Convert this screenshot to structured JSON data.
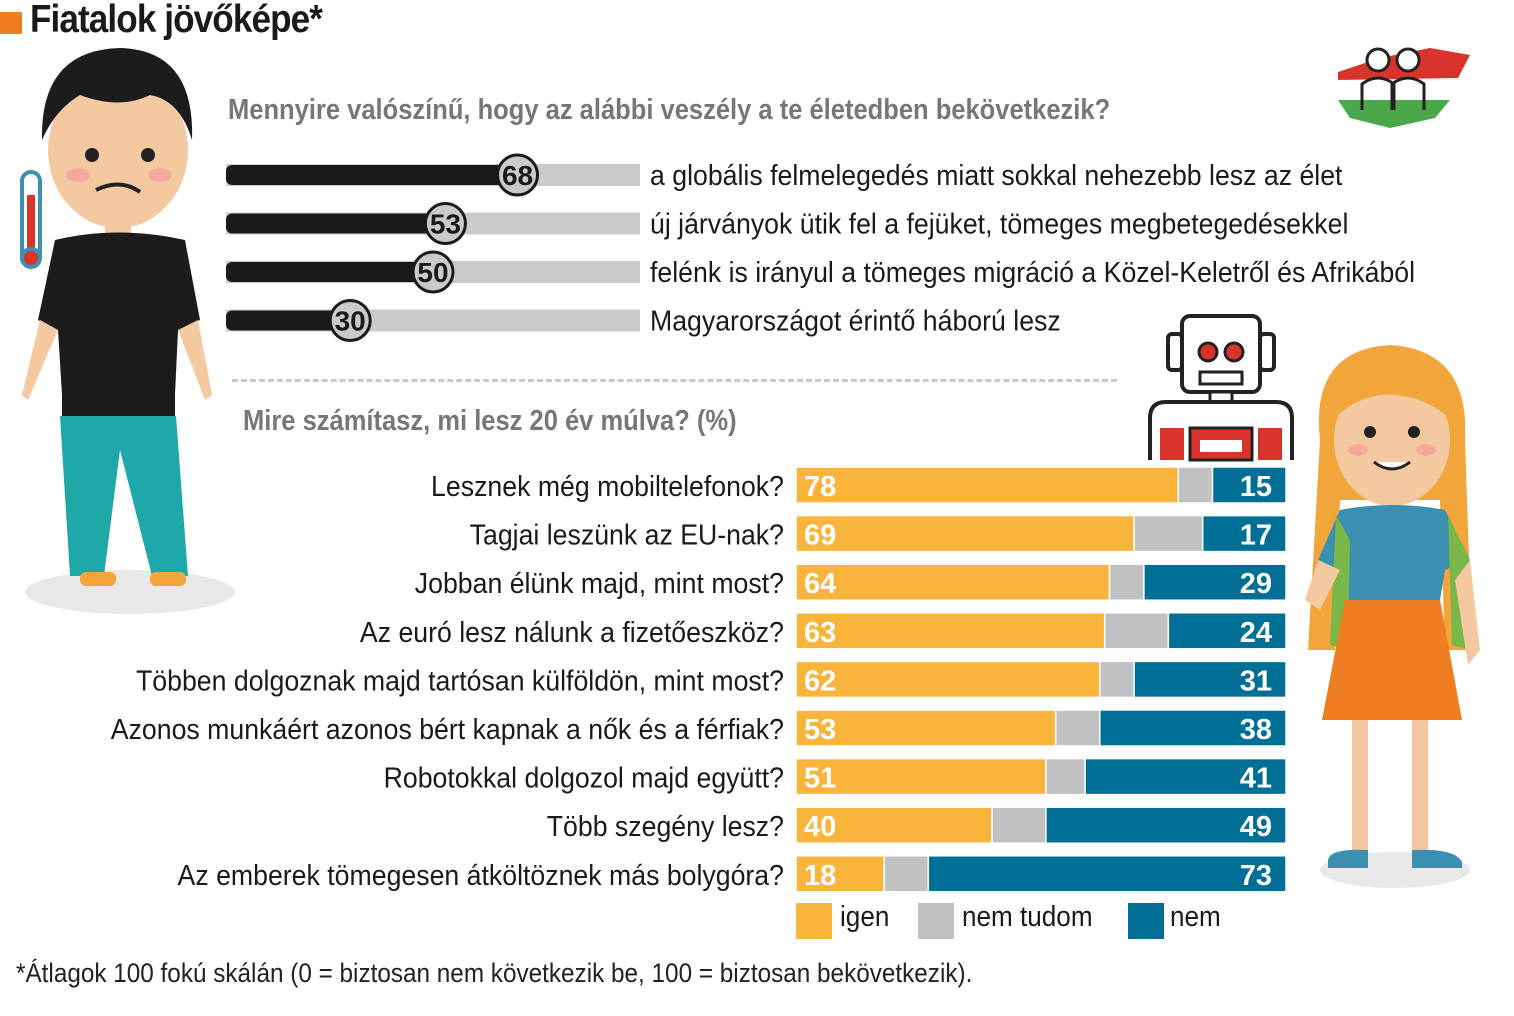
{
  "title": "Fiatalok jövőképe*",
  "colors": {
    "accent": "#ef7d22",
    "yes": "#f9b43b",
    "dontknow": "#c0c1c3",
    "no": "#006f96",
    "scale_fill": "#1a1a1a",
    "scale_track": "#c9cacc"
  },
  "chart_data": [
    {
      "type": "bar",
      "title": "Mennyire valószínű, hogy az alábbi veszély a te életedben bekövetkezik?",
      "scale": [
        0,
        100
      ],
      "categories": [
        "a globális felmelegedés miatt sokkal nehezebb lesz az élet",
        "új járványok ütik fel a fejüket, tömeges megbetegedésekkel",
        "felénk is irányul a tömeges migráció a Közel-Keletről és Afrikából",
        "Magyarországot érintő háború lesz"
      ],
      "values": [
        68,
        53,
        50,
        30
      ]
    },
    {
      "type": "bar",
      "stacked": true,
      "title": "Mire számítasz, mi lesz 20 év múlva? (%)",
      "categories": [
        "Lesznek még mobiltelefonok?",
        "Tagjai leszünk az EU-nak?",
        "Jobban élünk majd, mint most?",
        "Az euró lesz nálunk a fizetőeszköz?",
        "Többen dolgoznak majd tartósan külföldön, mint most?",
        "Azonos munkáért azonos bért kapnak a nők és a férfiak?",
        "Robotokkal dolgozol majd együtt?",
        "Több szegény lesz?",
        "Az emberek tömegesen átköltöznek más bolygóra?"
      ],
      "series": [
        {
          "name": "igen",
          "values": [
            78,
            69,
            64,
            63,
            62,
            53,
            51,
            40,
            18
          ]
        },
        {
          "name": "nem tudom",
          "values": [
            7,
            14,
            7,
            13,
            7,
            9,
            8,
            11,
            9
          ]
        },
        {
          "name": "nem",
          "values": [
            15,
            17,
            29,
            24,
            31,
            38,
            41,
            49,
            73
          ]
        }
      ],
      "legend": [
        "igen",
        "nem tudom",
        "nem"
      ]
    }
  ],
  "footnote": "*Átlagok 100 fokú skálán (0 = biztosan nem következik be, 100 = biztosan bekövetkezik)."
}
